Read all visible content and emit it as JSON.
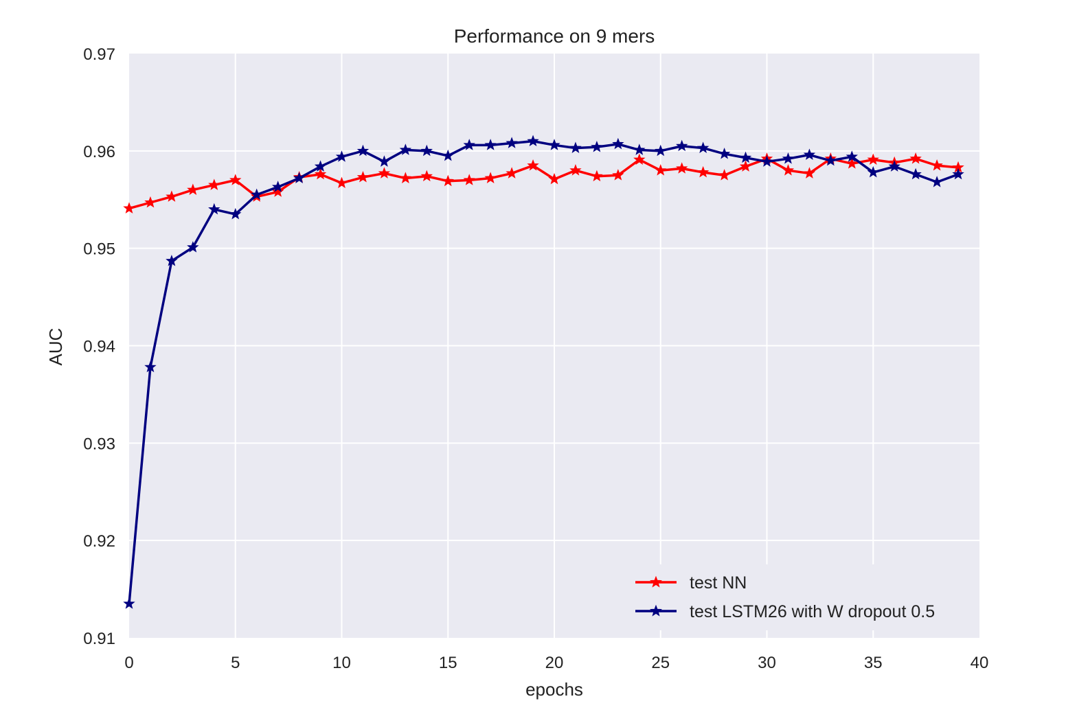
{
  "chart_data": {
    "type": "line",
    "title": "Performance on 9 mers",
    "xlabel": "epochs",
    "ylabel": "AUC",
    "xlim": [
      0,
      40
    ],
    "ylim": [
      0.91,
      0.97
    ],
    "xticks": [
      0,
      5,
      10,
      15,
      20,
      25,
      30,
      35,
      40
    ],
    "xtick_labels": [
      "0",
      "5",
      "10",
      "15",
      "20",
      "25",
      "30",
      "35",
      "40"
    ],
    "yticks": [
      0.91,
      0.92,
      0.93,
      0.94,
      0.95,
      0.96,
      0.97
    ],
    "ytick_labels": [
      "0.91",
      "0.92",
      "0.93",
      "0.94",
      "0.95",
      "0.96",
      "0.97"
    ],
    "grid": true,
    "legend_position": "bottom-right",
    "x": [
      0,
      1,
      2,
      3,
      4,
      5,
      6,
      7,
      8,
      9,
      10,
      11,
      12,
      13,
      14,
      15,
      16,
      17,
      18,
      19,
      20,
      21,
      22,
      23,
      24,
      25,
      26,
      27,
      28,
      29,
      30,
      31,
      32,
      33,
      34,
      35,
      36,
      37,
      38,
      39
    ],
    "series": [
      {
        "name": "test NN",
        "color": "#ff0000",
        "marker": "star",
        "values": [
          0.9541,
          0.9547,
          0.9553,
          0.956,
          0.9565,
          0.957,
          0.9553,
          0.9558,
          0.9573,
          0.9576,
          0.9567,
          0.9573,
          0.9577,
          0.9572,
          0.9574,
          0.9569,
          0.957,
          0.9572,
          0.9577,
          0.9585,
          0.9571,
          0.958,
          0.9574,
          0.9575,
          0.9591,
          0.958,
          0.9582,
          0.9578,
          0.9575,
          0.9584,
          0.9592,
          0.958,
          0.9577,
          0.9592,
          0.9587,
          0.9591,
          0.9588,
          0.9592,
          0.9585,
          0.9583
        ]
      },
      {
        "name": "test LSTM26 with W dropout 0.5",
        "color": "#000080",
        "marker": "star",
        "values": [
          0.9135,
          0.9378,
          0.9487,
          0.9501,
          0.954,
          0.9535,
          0.9555,
          0.9563,
          0.9572,
          0.9584,
          0.9594,
          0.96,
          0.9589,
          0.9601,
          0.96,
          0.9595,
          0.9606,
          0.9606,
          0.9608,
          0.961,
          0.9606,
          0.9603,
          0.9604,
          0.9607,
          0.9601,
          0.96,
          0.9605,
          0.9603,
          0.9597,
          0.9593,
          0.9589,
          0.9592,
          0.9596,
          0.959,
          0.9594,
          0.9578,
          0.9584,
          0.9576,
          0.9568,
          0.9576
        ]
      }
    ]
  }
}
